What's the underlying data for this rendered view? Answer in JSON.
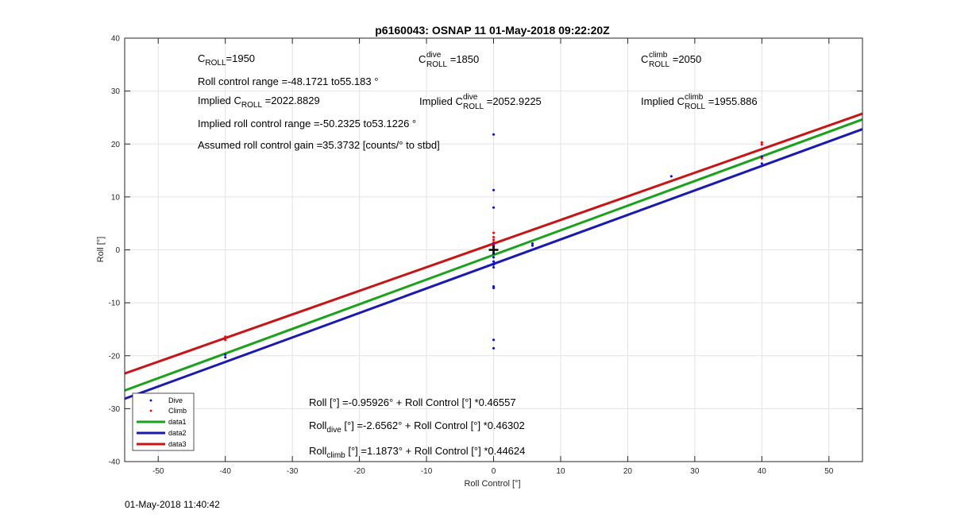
{
  "timestamp": "01-May-2018 11:40:42",
  "chart_data": {
    "type": "scatter",
    "title": "p6160043: OSNAP 11 01-May-2018 09:22:20Z",
    "xlabel": "Roll Control [°]",
    "ylabel": "Roll [°]",
    "xlim": [
      -55,
      55
    ],
    "ylim": [
      -40,
      40
    ],
    "x_ticks": [
      -50,
      -40,
      -30,
      -20,
      -10,
      0,
      10,
      20,
      30,
      40,
      50
    ],
    "y_ticks": [
      -40,
      -30,
      -20,
      -10,
      0,
      10,
      20,
      30,
      40
    ],
    "grid": true,
    "legend_position": "bottom-left",
    "colors": {
      "dive": "#0000ff",
      "climb": "#ff0000",
      "data1": "#1aa31a",
      "data2": "#1a1ab2",
      "data3": "#c81414",
      "marker": "#000000"
    },
    "series": [
      {
        "name": "Dive",
        "kind": "points",
        "points": [
          [
            -40,
            -19.8
          ],
          [
            -40,
            -20.3
          ],
          [
            0,
            21.8
          ],
          [
            0,
            11.3
          ],
          [
            0,
            8.0
          ],
          [
            0,
            1.2
          ],
          [
            0,
            0.6
          ],
          [
            0,
            -0.6
          ],
          [
            0,
            -1.4
          ],
          [
            0,
            -2.2
          ],
          [
            0,
            -2.8
          ],
          [
            0,
            -3.3
          ],
          [
            0,
            -6.9
          ],
          [
            0,
            -7.2
          ],
          [
            0,
            -17.0
          ],
          [
            0,
            -18.6
          ],
          [
            5.8,
            1.2
          ],
          [
            5.8,
            0.8
          ],
          [
            26.5,
            13.9
          ],
          [
            40,
            17.6
          ],
          [
            40,
            16.3
          ]
        ]
      },
      {
        "name": "Climb",
        "kind": "points",
        "points": [
          [
            -40,
            -16.4
          ],
          [
            -40,
            -17.0
          ],
          [
            0,
            3.2
          ],
          [
            0,
            2.4
          ],
          [
            0,
            1.9
          ],
          [
            0,
            1.4
          ],
          [
            0,
            0.9
          ],
          [
            0,
            0.4
          ],
          [
            40,
            20.3
          ],
          [
            40,
            19.9
          ],
          [
            40,
            17.3
          ]
        ]
      },
      {
        "name": "data1",
        "kind": "line",
        "intercept": -0.95926,
        "slope": 0.46557
      },
      {
        "name": "data2",
        "kind": "line",
        "intercept": -2.6562,
        "slope": 0.46302
      },
      {
        "name": "data3",
        "kind": "line",
        "intercept": 1.1873,
        "slope": 0.44624
      }
    ],
    "annotations": {
      "c_roll": {
        "main": "C",
        "sub": "ROLL",
        "rest": "=1950"
      },
      "c_roll_dive": {
        "main": "C",
        "sup": "dive",
        "sub": "ROLL",
        "rest": " =1850"
      },
      "c_roll_climb": {
        "main": "C",
        "sup": "climb",
        "sub": "ROLL",
        "rest": " =2050"
      },
      "roll_control_range": "Roll control range =-48.1721 to55.183 °",
      "implied_c_roll": {
        "pre": "Implied C",
        "sub": "ROLL",
        "rest": " =2022.8829"
      },
      "implied_c_roll_dive": {
        "pre": "Implied C",
        "sup": "dive",
        "sub": "ROLL",
        "rest": " =2052.9225"
      },
      "implied_c_roll_climb": {
        "pre": "Implied C",
        "sup": "climb",
        "sub": "ROLL",
        "rest": " =1955.886"
      },
      "implied_roll_control_range": "Implied roll control range =-50.2325 to53.1226 °",
      "assumed_gain": "Assumed roll control gain =35.3732 [counts/° to stbd]",
      "fit_all": "Roll [°] =-0.95926° + Roll Control [°] *0.46557",
      "fit_dive": {
        "pre": "Roll",
        "sub": "dive",
        "rest": " [°] =-2.6562° + Roll Control [°] *0.46302"
      },
      "fit_climb": {
        "pre": "Roll",
        "sub": "climb",
        "rest": " [°] =1.1873° + Roll Control [°] *0.44624"
      }
    }
  }
}
